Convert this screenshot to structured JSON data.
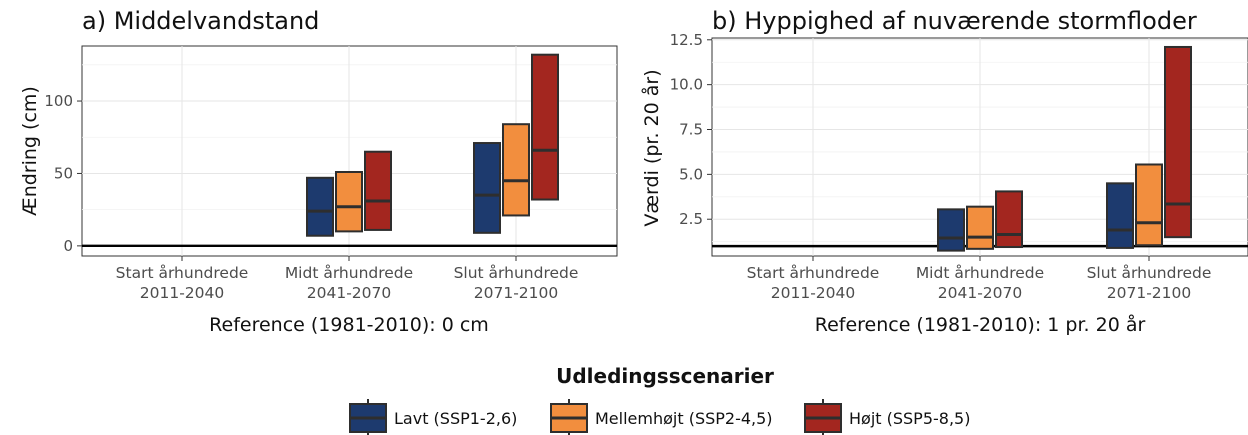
{
  "legend": {
    "title": "Udledingsscenarier",
    "position": "bottom",
    "items": [
      {
        "label": "Lavt (SSP1-2,6)",
        "color": "#1d3a6e"
      },
      {
        "label": "Mellemhøjt (SSP2-4,5)",
        "color": "#f28e3e"
      },
      {
        "label": "Højt (SSP5-8,5)",
        "color": "#a3261f"
      }
    ]
  },
  "chart_data": [
    {
      "type": "bar",
      "title": "a) Middelvandstand",
      "xlabel": "Reference (1981-2010): 0 cm",
      "ylabel": "Ændring (cm)",
      "ylim": [
        -7,
        138
      ],
      "yticks": [
        0,
        50,
        100
      ],
      "ytick_labels": [
        "0",
        "50",
        "100"
      ],
      "reference_line": 0,
      "grid": true,
      "categories": [
        {
          "line1": "Start århundrede",
          "line2": "2011-2040"
        },
        {
          "line1": "Midt århundrede",
          "line2": "2041-2070"
        },
        {
          "line1": "Slut århundrede",
          "line2": "2071-2100"
        }
      ],
      "series": [
        {
          "name": "Lavt (SSP1-2,6)",
          "ranges": [
            null,
            {
              "low": 7,
              "mid": 24,
              "high": 47
            },
            {
              "low": 9,
              "mid": 35,
              "high": 71
            }
          ]
        },
        {
          "name": "Mellemhøjt (SSP2-4,5)",
          "ranges": [
            null,
            {
              "low": 10,
              "mid": 27,
              "high": 51
            },
            {
              "low": 21,
              "mid": 45,
              "high": 84
            }
          ]
        },
        {
          "name": "Højt (SSP5-8,5)",
          "ranges": [
            null,
            {
              "low": 11,
              "mid": 31,
              "high": 65
            },
            {
              "low": 32,
              "mid": 66,
              "high": 132
            }
          ]
        }
      ]
    },
    {
      "type": "bar",
      "title": "b) Hyppighed af nuværende stormfloder",
      "xlabel": "Reference (1981-2010): 1 pr. 20 år",
      "ylabel": "Værdi (pr. 20 år)",
      "ylim": [
        0.45,
        12.6
      ],
      "yticks": [
        2.5,
        5.0,
        7.5,
        10.0,
        12.5
      ],
      "ytick_labels": [
        "2.5",
        "5.0",
        "7.5",
        "10.0",
        "12.5"
      ],
      "reference_line": 1,
      "grid": true,
      "categories": [
        {
          "line1": "Start århundrede",
          "line2": "2011-2040"
        },
        {
          "line1": "Midt århundrede",
          "line2": "2041-2070"
        },
        {
          "line1": "Slut århundrede",
          "line2": "2071-2100"
        }
      ],
      "series": [
        {
          "name": "Lavt (SSP1-2,6)",
          "ranges": [
            null,
            {
              "low": 0.75,
              "mid": 1.45,
              "high": 3.05
            },
            {
              "low": 0.9,
              "mid": 1.9,
              "high": 4.5
            }
          ]
        },
        {
          "name": "Mellemhøjt (SSP2-4,5)",
          "ranges": [
            null,
            {
              "low": 0.85,
              "mid": 1.5,
              "high": 3.2
            },
            {
              "low": 1.05,
              "mid": 2.3,
              "high": 5.55
            }
          ]
        },
        {
          "name": "Højt (SSP5-8,5)",
          "ranges": [
            null,
            {
              "low": 0.95,
              "mid": 1.65,
              "high": 4.05
            },
            {
              "low": 1.5,
              "mid": 3.35,
              "high": 12.1
            }
          ]
        }
      ]
    }
  ]
}
